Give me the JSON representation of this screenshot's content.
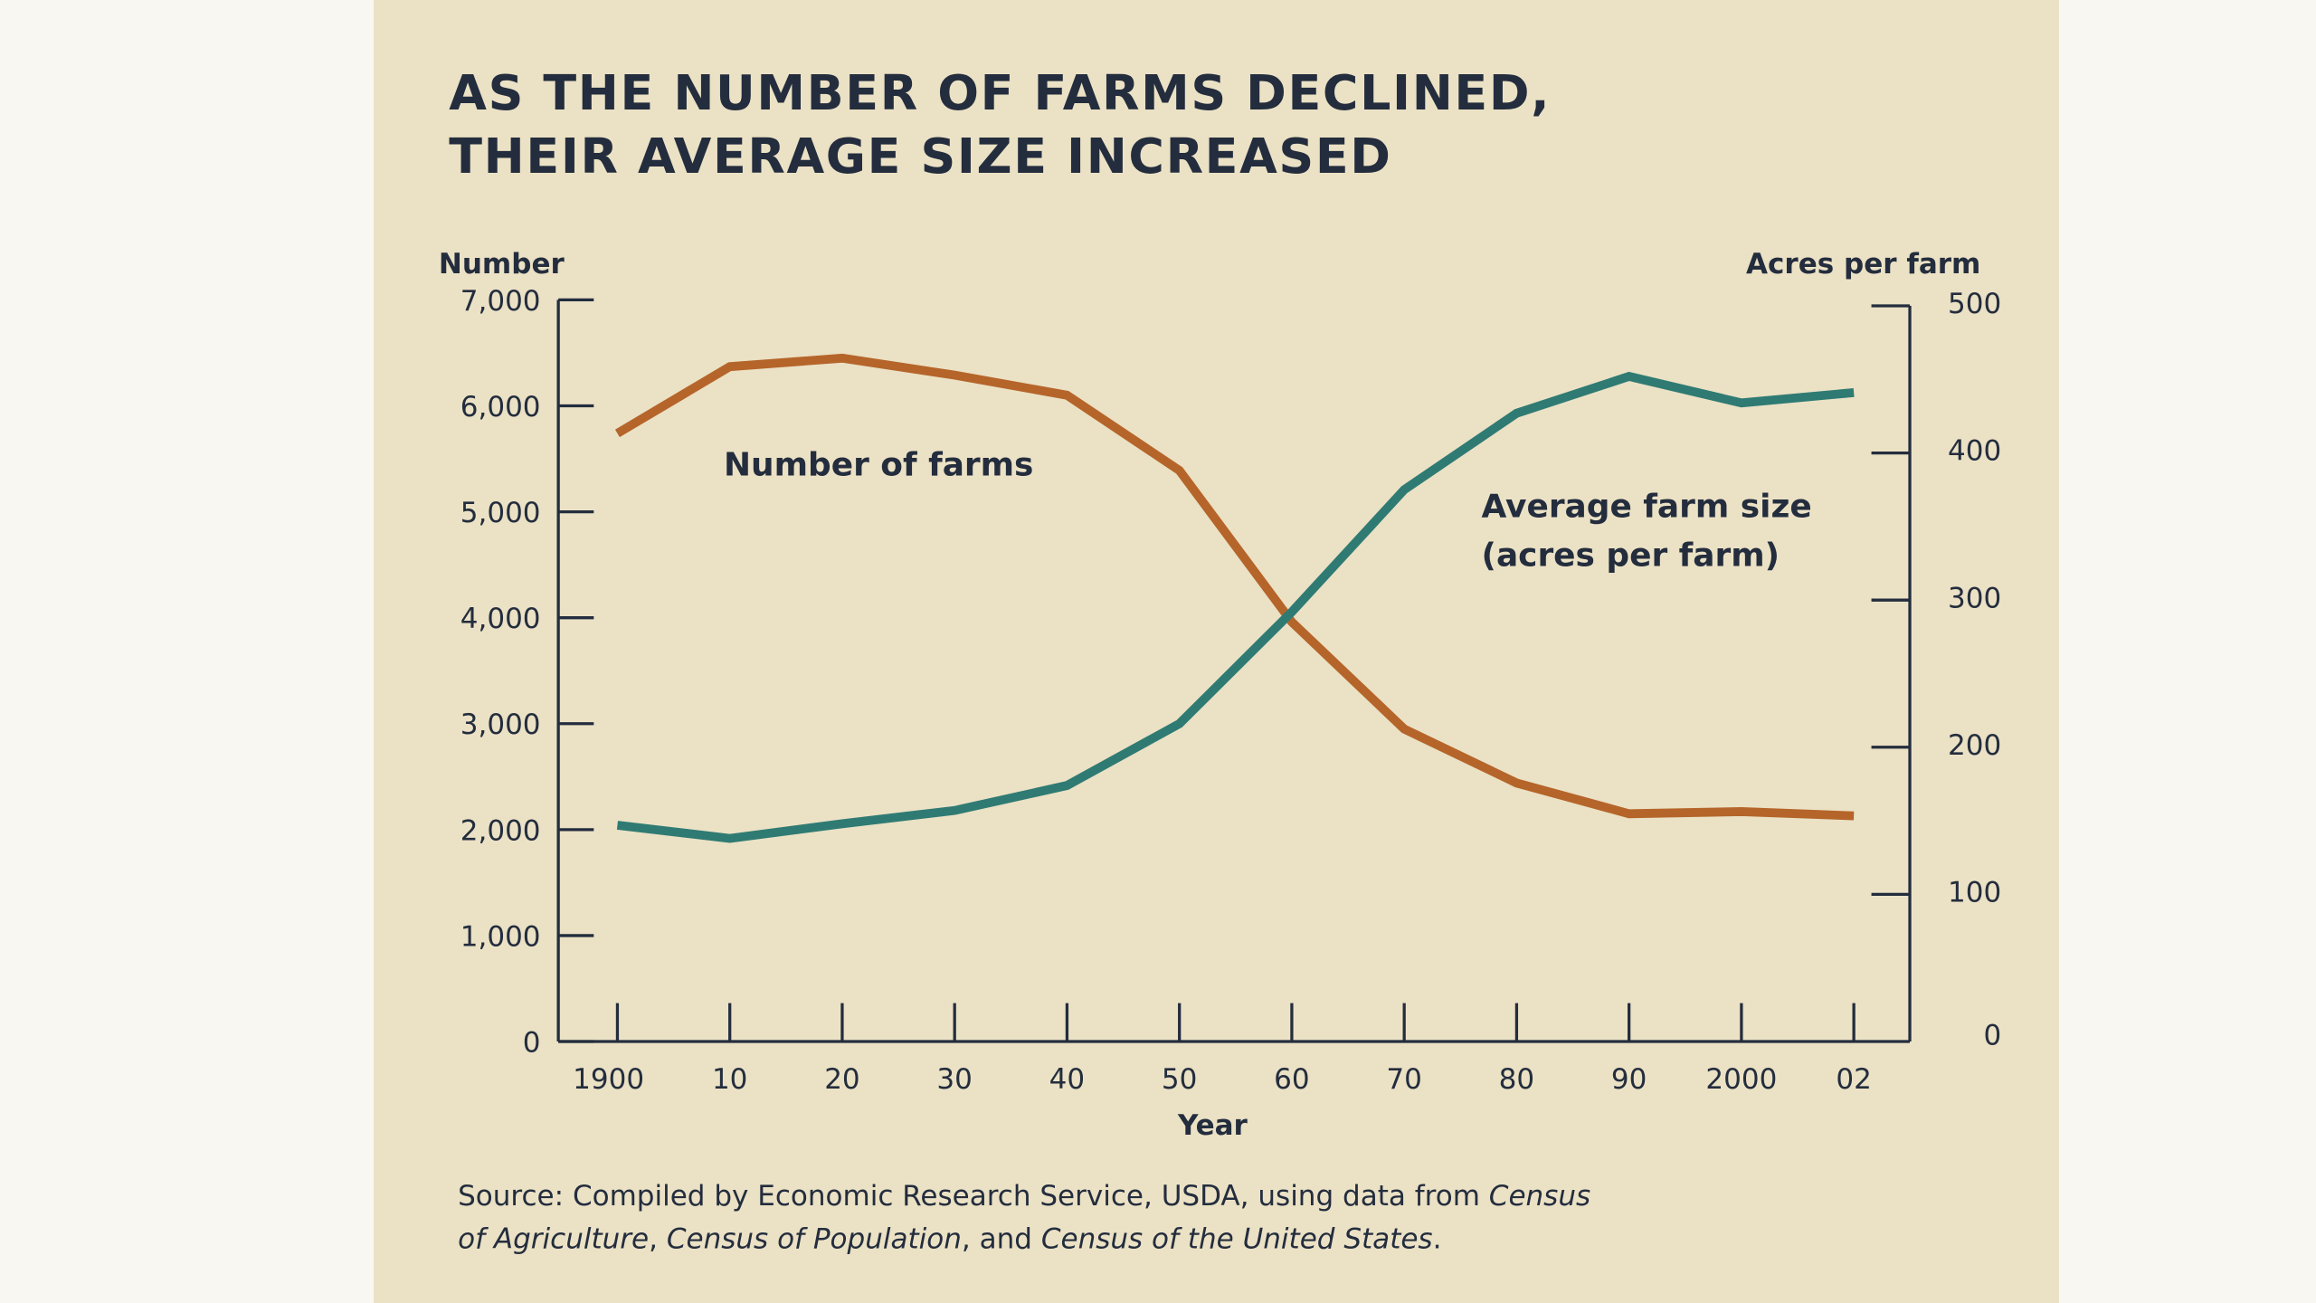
{
  "colors": {
    "background": "#ebe1c5",
    "farms": "#b5652a",
    "size": "#2f7b73",
    "text": "#232d3d"
  },
  "chart_data": {
    "type": "line",
    "title": [
      "AS THE NUMBER OF FARMS DECLINED,",
      "THEIR AVERAGE SIZE INCREASED"
    ],
    "xlabel": "Year",
    "ylabel_left": "Number",
    "ylabel_right": "Acres per farm",
    "categories": [
      "1900",
      "10",
      "20",
      "30",
      "40",
      "50",
      "60",
      "70",
      "80",
      "90",
      "2000",
      "02"
    ],
    "years": [
      1900,
      1910,
      1920,
      1930,
      1940,
      1950,
      1960,
      1970,
      1980,
      1990,
      2000,
      2002
    ],
    "ylim_left": [
      0,
      7000
    ],
    "yticks_left": [
      "0",
      "1,000",
      "2,000",
      "3,000",
      "4,000",
      "5,000",
      "6,000",
      "7,000"
    ],
    "ylim_right": [
      0,
      500
    ],
    "yticks_right": [
      "0",
      "100",
      "200",
      "300",
      "400",
      "500"
    ],
    "grid": false,
    "series": [
      {
        "name": "Number of farms",
        "axis": "left",
        "values": [
          5740,
          6370,
          6450,
          6290,
          6100,
          5390,
          3960,
          2950,
          2440,
          2150,
          2170,
          2130
        ]
      },
      {
        "name": "Average farm size\n(acres per farm)",
        "axis": "right",
        "values": [
          147,
          138,
          148,
          157,
          174,
          216,
          292,
          375,
          427,
          452,
          434,
          441
        ]
      }
    ],
    "annotations": {
      "farms": "Number of farms",
      "size_line1": "Average farm size",
      "size_line2": "(acres per farm)"
    },
    "source": {
      "line1_plain": "Source: Compiled by Economic Research Service, USDA, using data from ",
      "line1_italic": "Census",
      "line2_italic1": "of Agriculture",
      "line2_plain1": ", ",
      "line2_italic2": "Census of Population",
      "line2_plain2": ", and ",
      "line2_italic3": "Census of the United States",
      "line2_plain3": "."
    }
  }
}
